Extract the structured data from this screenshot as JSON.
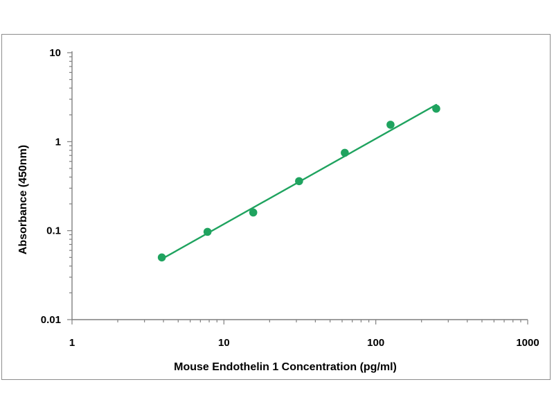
{
  "chart_data": {
    "type": "scatter",
    "title": "",
    "xlabel": "Mouse Endothelin 1 Concentration (pg/ml)",
    "ylabel": "Absorbance (450nm)",
    "x_scale": "log",
    "y_scale": "log",
    "xlim": [
      1,
      1000
    ],
    "ylim": [
      0.01,
      10
    ],
    "x_ticks": [
      "1",
      "10",
      "100",
      "1000"
    ],
    "y_ticks": [
      "10",
      "1",
      "0.1",
      "0.01"
    ],
    "grid": false,
    "legend": "none",
    "series": [
      {
        "marker_color": "#1fa35f",
        "points": [
          {
            "x": 3.9,
            "y": 0.05
          },
          {
            "x": 7.8,
            "y": 0.097
          },
          {
            "x": 15.6,
            "y": 0.16
          },
          {
            "x": 31.25,
            "y": 0.36
          },
          {
            "x": 62.5,
            "y": 0.75
          },
          {
            "x": 125,
            "y": 1.55
          },
          {
            "x": 250,
            "y": 2.35
          }
        ],
        "trendline": {
          "x_start": 3.9,
          "y_start": 0.048,
          "x_end": 250,
          "y_end": 2.6
        }
      }
    ]
  }
}
